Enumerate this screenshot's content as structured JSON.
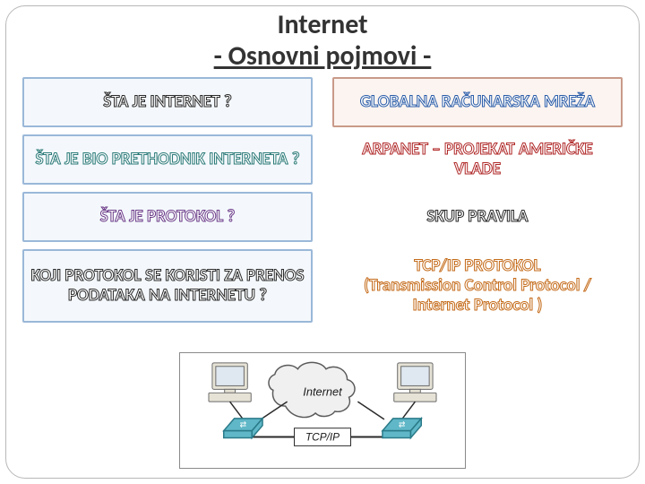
{
  "title": {
    "line1": "Internet",
    "line2": "- Osnovni pojmovi -"
  },
  "rows": [
    {
      "q": "ŠTA JE INTERNET ?",
      "q_style": "txt-dark",
      "a": "GLOBALNA RAČUNARSKA MREŽA",
      "a_style": "txt-blue",
      "q_boxed": true,
      "a_boxed": true,
      "tall": false
    },
    {
      "q": "ŠTA JE BIO PRETHODNIK INTERNETA ?",
      "q_style": "txt-teal",
      "a": "ARPANET – PROJEKAT AMERIČKE VLADE",
      "a_style": "txt-red",
      "q_boxed": true,
      "a_boxed": false,
      "tall": false
    },
    {
      "q": "ŠTA JE PROTOKOL ?",
      "q_style": "txt-purple",
      "a": "SKUP PRAVILA",
      "a_style": "txt-dark",
      "q_boxed": true,
      "a_boxed": false,
      "tall": false
    },
    {
      "q": "KOJI PROTOKOL SE KORISTI ZA PRENOS PODATAKA NA INTERNETU ?",
      "q_style": "txt-dark",
      "a": "TCP/IP PROTOKOL\n(Transmission Control Protocol / Internet Protocol )",
      "a_style": "txt-orange",
      "q_boxed": true,
      "a_boxed": false,
      "tall": true
    }
  ],
  "diagram": {
    "cloud_label": "Internet",
    "link_label": "TCP/IP",
    "colors": {
      "monitor_body": "#e6e3d6",
      "monitor_screen": "#dfe8f0",
      "monitor_stroke": "#6a6a6a",
      "device_body": "#5fb7c7",
      "device_stroke": "#2a7a88",
      "cloud_fill": "#f0f0f0",
      "cloud_stroke": "#5a5a5a",
      "link": "#2a2a2a",
      "text": "#1a1a1a"
    }
  }
}
